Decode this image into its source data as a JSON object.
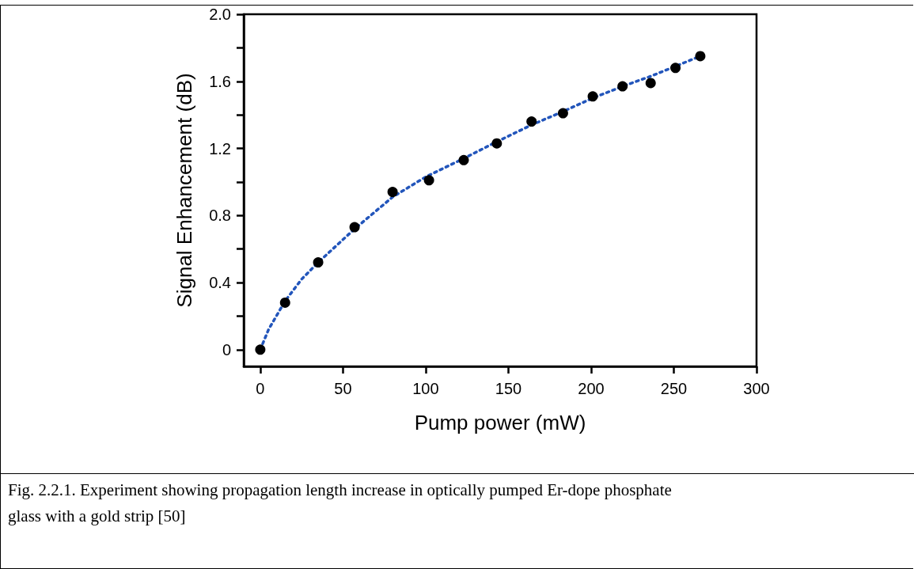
{
  "chart_data": {
    "type": "scatter",
    "xlabel": "Pump power (mW)",
    "ylabel": "Signal Enhancement (dB)",
    "annotations": [
      "Fig. 2.2.1. Experiment showing propagation length increase in optically pumped Er-dope phosphate glass with a gold strip [50]"
    ],
    "xlim": [
      -10,
      300
    ],
    "xticks": [
      0,
      50,
      100,
      150,
      200,
      250,
      300
    ],
    "ylim": [
      -0.1,
      2.0
    ],
    "yticks": [
      0,
      {
        "value": 0.2,
        "label": null
      },
      0.4,
      {
        "value": 0.6,
        "label": null
      },
      0.8,
      {
        "value": 1.0,
        "label": null
      },
      1.2,
      {
        "value": 1.4,
        "label": null
      },
      1.6,
      {
        "value": 1.8,
        "label": null
      },
      {
        "value": 2.0,
        "label": "2.0"
      }
    ],
    "marker": "circle",
    "series": [
      {
        "color": "#000000",
        "x": [
          0,
          15,
          35,
          57,
          80,
          102,
          123,
          143,
          164,
          183,
          201,
          219,
          236,
          251,
          266
        ],
        "values": [
          0,
          0.28,
          0.52,
          0.73,
          0.94,
          1.01,
          1.13,
          1.23,
          1.36,
          1.41,
          1.51,
          1.57,
          1.59,
          1.68,
          1.75
        ]
      },
      {
        "type": "line",
        "color": "#2255bb",
        "line_style": "dotted",
        "marker": "none",
        "x": [
          0,
          5,
          15,
          25,
          35,
          57,
          80,
          100,
          123,
          143,
          164,
          183,
          201,
          219,
          236,
          251,
          266
        ],
        "values": [
          0,
          0.12,
          0.29,
          0.42,
          0.52,
          0.72,
          0.91,
          1.03,
          1.14,
          1.24,
          1.34,
          1.42,
          1.5,
          1.57,
          1.63,
          1.69,
          1.75
        ]
      }
    ]
  }
}
